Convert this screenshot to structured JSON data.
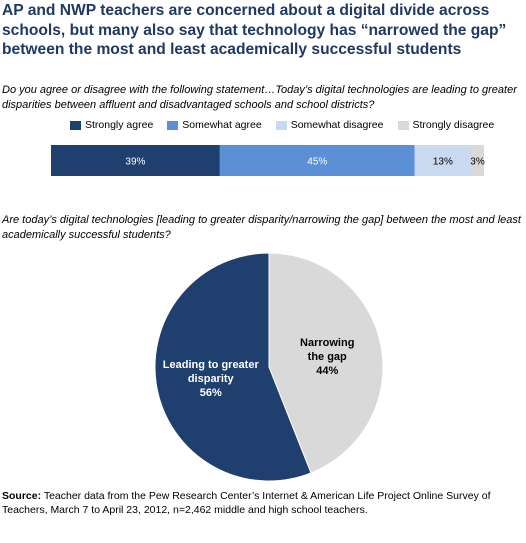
{
  "title": "AP and NWP teachers are concerned about a digital divide across schools, but many also say that technology has “narrowed the gap” between the most and least academically successful students",
  "question1": "Do you agree or disagree with the following statement…Today’s digital technologies are leading to greater disparities between affluent and disadvantaged schools and school districts?",
  "question2": "Are today’s digital technologies [leading to greater disparity/narrowing the gap] between the most and least academically successful students?",
  "source_label": "Source:",
  "source_text": " Teacher data from the Pew Research Center’s Internet & American Life Project Online Survey of Teachers, March 7 to April 23, 2012, n=2,462 middle and high school teachers.",
  "chart_data": [
    {
      "type": "bar",
      "orientation": "horizontal-stacked",
      "categories": [
        "Strongly agree",
        "Somewhat agree",
        "Somewhat disagree",
        "Strongly disagree"
      ],
      "values": [
        39,
        45,
        13,
        3
      ],
      "value_labels": [
        "39%",
        "45%",
        "13%",
        "3%"
      ],
      "colors": [
        "#1f3f6e",
        "#5b8fd6",
        "#c9d9ef",
        "#d9d9d9"
      ],
      "label_colors": [
        "#ffffff",
        "#ffffff",
        "#000000",
        "#000000"
      ],
      "legend": "top"
    },
    {
      "type": "pie",
      "slices": [
        {
          "label_lines": [
            "Leading to greater",
            "disparity",
            "56%"
          ],
          "value": 56,
          "color": "#1f3f6e",
          "text_color": "#ffffff"
        },
        {
          "label_lines": [
            "Narrowing",
            "the gap",
            "44%"
          ],
          "value": 44,
          "color": "#d9d9d9",
          "text_color": "#000000"
        }
      ]
    }
  ]
}
